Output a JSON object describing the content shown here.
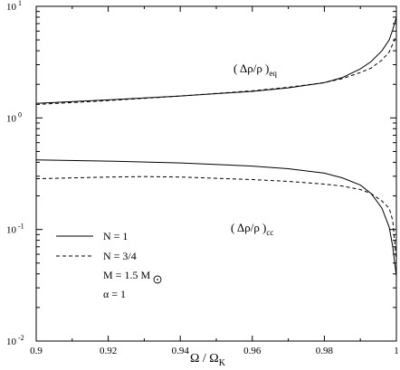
{
  "chart_data": {
    "type": "line",
    "xlabel": "Ω / Ω",
    "xlabel_sub": "K",
    "xlim": [
      0.9,
      1.0
    ],
    "ylim": [
      0.01,
      10
    ],
    "yscale": "log",
    "x_ticks": [
      "0.9",
      "0.92",
      "0.94",
      "0.96",
      "0.98",
      "1"
    ],
    "y_ticks": [
      {
        "base": "10",
        "exp": "-2"
      },
      {
        "base": "10",
        "exp": "-1"
      },
      {
        "base": "10",
        "exp": "0"
      },
      {
        "base": "10",
        "exp": "1"
      }
    ],
    "grid": false,
    "legend_position": "lower-left",
    "legend": {
      "items": [
        {
          "label": "N = 1",
          "style": "solid"
        },
        {
          "label": "N = 3/4",
          "style": "dashed"
        }
      ],
      "note_mass": "M = 1.5 M",
      "note_alpha": "α = 1"
    },
    "annotations": [
      {
        "text": "( Δρ/ρ )",
        "sub": "eq"
      },
      {
        "text": "( Δρ/ρ )",
        "sub": "cc"
      }
    ],
    "series": [
      {
        "curve": "eq",
        "style": "solid",
        "x": [
          0.9,
          0.92,
          0.94,
          0.96,
          0.97,
          0.98,
          0.985,
          0.99,
          0.993,
          0.996,
          0.998,
          0.999,
          1.0
        ],
        "y": [
          1.35,
          1.45,
          1.57,
          1.73,
          1.86,
          2.07,
          2.3,
          2.75,
          3.2,
          4.0,
          5.0,
          6.2,
          8.0
        ]
      },
      {
        "curve": "eq",
        "style": "dashed",
        "x": [
          0.9,
          0.92,
          0.94,
          0.96,
          0.97,
          0.98,
          0.985,
          0.99,
          0.993,
          0.996,
          0.998,
          0.999,
          1.0
        ],
        "y": [
          1.32,
          1.43,
          1.57,
          1.75,
          1.88,
          2.07,
          2.25,
          2.55,
          2.8,
          3.3,
          3.9,
          4.6,
          5.5
        ]
      },
      {
        "curve": "cc",
        "style": "solid",
        "x": [
          0.9,
          0.92,
          0.94,
          0.96,
          0.97,
          0.98,
          0.985,
          0.99,
          0.993,
          0.996,
          0.998,
          0.999,
          1.0
        ],
        "y": [
          0.42,
          0.41,
          0.395,
          0.37,
          0.35,
          0.32,
          0.29,
          0.25,
          0.21,
          0.155,
          0.105,
          0.07,
          0.038
        ]
      },
      {
        "curve": "cc",
        "style": "dashed",
        "x": [
          0.9,
          0.92,
          0.93,
          0.94,
          0.96,
          0.97,
          0.98,
          0.985,
          0.99,
          0.993,
          0.996,
          0.998,
          0.999,
          1.0
        ],
        "y": [
          0.285,
          0.295,
          0.298,
          0.295,
          0.28,
          0.27,
          0.255,
          0.245,
          0.228,
          0.21,
          0.18,
          0.155,
          0.12,
          0.052
        ]
      }
    ]
  }
}
